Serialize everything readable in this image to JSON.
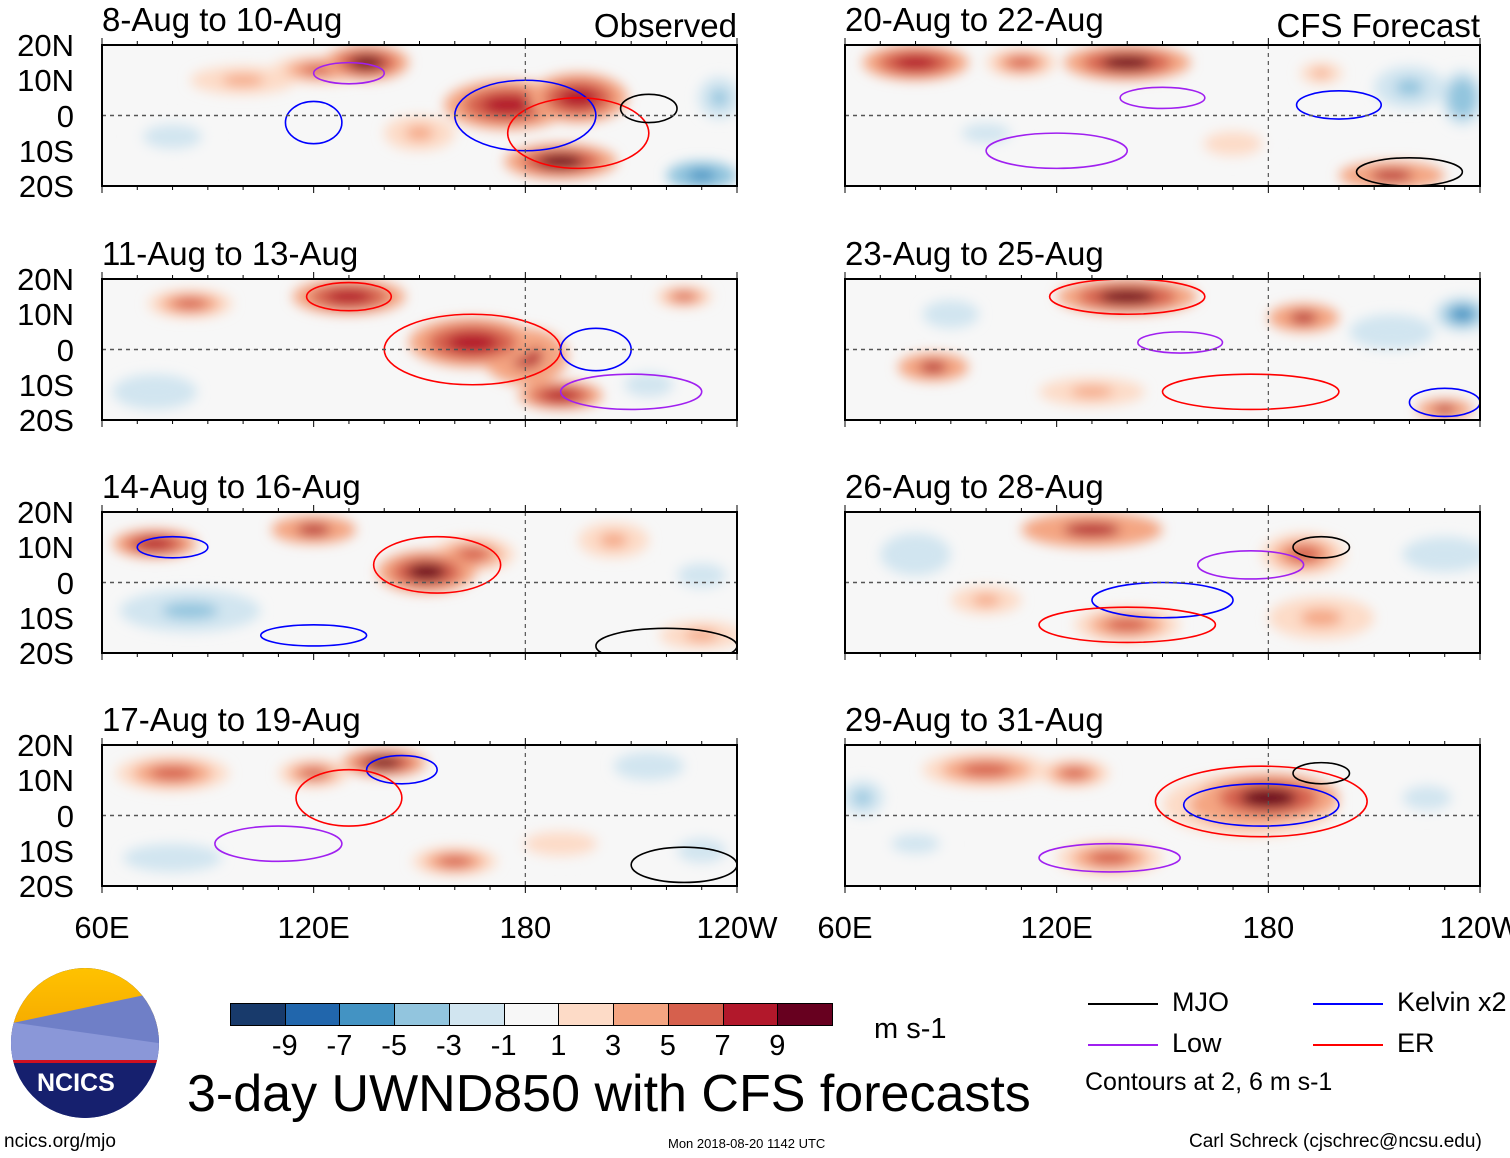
{
  "chart_data": {
    "type": "heatmap",
    "title": "3-day UWND850 with CFS forecasts",
    "variable": "UWND850",
    "units": "m s-1",
    "lon_range": [
      60,
      240
    ],
    "lat_range": [
      -20,
      20
    ],
    "lat_ticks": [
      "20N",
      "10N",
      "0",
      "10S",
      "20S"
    ],
    "lon_ticks": [
      "60E",
      "120E",
      "180",
      "120W"
    ],
    "column_labels": [
      "Observed",
      "CFS Forecast"
    ],
    "colorbar": {
      "levels": [
        -9,
        -7,
        -5,
        -3,
        -1,
        1,
        3,
        5,
        7,
        9
      ],
      "labels": [
        "-9",
        "-7",
        "-5",
        "-3",
        "-1",
        "1",
        "3",
        "5",
        "7",
        "9"
      ],
      "colors": [
        "#183a6b",
        "#2166ac",
        "#4393c3",
        "#92c5de",
        "#d1e5f0",
        "#f7f7f7",
        "#fddbc7",
        "#f4a582",
        "#d6604d",
        "#b2182b",
        "#67001f"
      ]
    },
    "legend": [
      {
        "name": "MJO",
        "color": "#000000"
      },
      {
        "name": "Kelvin x2",
        "color": "#0000ff"
      },
      {
        "name": "Low",
        "color": "#a020f0"
      },
      {
        "name": "ER",
        "color": "#ff0000"
      }
    ],
    "contour_note": "Contours at 2, 6 m s-1",
    "panels": [
      {
        "title": "8-Aug to 10-Aug",
        "col": 0,
        "row": 0,
        "anomalies": [
          [
            135,
            15,
            12,
            5,
            9
          ],
          [
            122,
            13,
            14,
            4,
            5
          ],
          [
            175,
            3,
            18,
            7,
            8
          ],
          [
            195,
            5,
            14,
            7,
            8
          ],
          [
            190,
            -13,
            16,
            5,
            9
          ],
          [
            100,
            10,
            15,
            4,
            3
          ],
          [
            230,
            -17,
            10,
            4,
            -7
          ],
          [
            235,
            5,
            6,
            6,
            -4
          ],
          [
            80,
            -6,
            12,
            5,
            -2
          ],
          [
            150,
            -5,
            10,
            5,
            3
          ]
        ],
        "contours": [
          [
            180,
            0,
            20,
            10,
            "#0000ff"
          ],
          [
            195,
            -5,
            20,
            10,
            "#ff0000"
          ],
          [
            215,
            2,
            8,
            4,
            "#000000"
          ],
          [
            120,
            -2,
            8,
            6,
            "#0000ff"
          ],
          [
            130,
            12,
            10,
            3,
            "#a020f0"
          ]
        ]
      },
      {
        "title": "11-Aug to 13-Aug",
        "col": 0,
        "row": 1,
        "anomalies": [
          [
            130,
            15,
            16,
            5,
            8
          ],
          [
            85,
            13,
            12,
            4,
            6
          ],
          [
            165,
            2,
            18,
            7,
            8
          ],
          [
            180,
            -2,
            12,
            8,
            7
          ],
          [
            190,
            -13,
            12,
            4,
            8
          ],
          [
            225,
            15,
            8,
            3,
            5
          ],
          [
            75,
            -12,
            12,
            5,
            -3
          ],
          [
            215,
            -10,
            10,
            5,
            -2
          ]
        ],
        "contours": [
          [
            165,
            0,
            25,
            10,
            "#ff0000"
          ],
          [
            130,
            15,
            12,
            4,
            "#ff0000"
          ],
          [
            200,
            0,
            10,
            6,
            "#0000ff"
          ],
          [
            210,
            -12,
            20,
            5,
            "#a020f0"
          ]
        ]
      },
      {
        "title": "14-Aug to 16-Aug",
        "col": 0,
        "row": 2,
        "anomalies": [
          [
            75,
            11,
            12,
            4,
            8
          ],
          [
            120,
            15,
            12,
            4,
            7
          ],
          [
            152,
            3,
            14,
            6,
            9
          ],
          [
            165,
            8,
            12,
            5,
            6
          ],
          [
            205,
            12,
            10,
            5,
            3
          ],
          [
            85,
            -8,
            20,
            6,
            -4
          ],
          [
            230,
            2,
            10,
            5,
            -2
          ],
          [
            230,
            -15,
            12,
            4,
            3
          ]
        ],
        "contours": [
          [
            155,
            5,
            18,
            8,
            "#ff0000"
          ],
          [
            80,
            10,
            10,
            3,
            "#0000ff"
          ],
          [
            220,
            -18,
            20,
            5,
            "#000000"
          ],
          [
            120,
            -15,
            15,
            3,
            "#0000ff"
          ]
        ]
      },
      {
        "title": "17-Aug to 19-Aug",
        "col": 0,
        "row": 3,
        "anomalies": [
          [
            80,
            12,
            16,
            5,
            5
          ],
          [
            140,
            15,
            12,
            4,
            9
          ],
          [
            120,
            12,
            10,
            4,
            6
          ],
          [
            160,
            -13,
            12,
            4,
            6
          ],
          [
            215,
            14,
            10,
            4,
            -3
          ],
          [
            80,
            -12,
            14,
            4,
            -3
          ],
          [
            190,
            -8,
            15,
            5,
            2
          ],
          [
            230,
            -10,
            10,
            5,
            -2
          ]
        ],
        "contours": [
          [
            145,
            13,
            10,
            4,
            "#0000ff"
          ],
          [
            130,
            5,
            15,
            8,
            "#ff0000"
          ],
          [
            225,
            -14,
            15,
            5,
            "#000000"
          ],
          [
            110,
            -8,
            18,
            5,
            "#a020f0"
          ]
        ]
      },
      {
        "title": "20-Aug to 22-Aug",
        "col": 1,
        "row": 0,
        "anomalies": [
          [
            80,
            15,
            15,
            5,
            8
          ],
          [
            140,
            15,
            18,
            5,
            9
          ],
          [
            110,
            15,
            10,
            4,
            5
          ],
          [
            195,
            12,
            6,
            3,
            4
          ],
          [
            220,
            8,
            10,
            6,
            -4
          ],
          [
            235,
            5,
            6,
            8,
            -5
          ],
          [
            215,
            -17,
            15,
            4,
            7
          ],
          [
            100,
            -5,
            10,
            4,
            -2
          ],
          [
            170,
            -8,
            12,
            5,
            2
          ]
        ],
        "contours": [
          [
            200,
            3,
            12,
            4,
            "#0000ff"
          ],
          [
            150,
            5,
            12,
            3,
            "#a020f0"
          ],
          [
            220,
            -16,
            15,
            4,
            "#000000"
          ],
          [
            120,
            -10,
            20,
            5,
            "#a020f0"
          ]
        ]
      },
      {
        "title": "23-Aug to 25-Aug",
        "col": 1,
        "row": 1,
        "anomalies": [
          [
            140,
            15,
            20,
            5,
            9
          ],
          [
            190,
            9,
            10,
            4,
            7
          ],
          [
            235,
            10,
            8,
            5,
            -6
          ],
          [
            85,
            -5,
            10,
            4,
            7
          ],
          [
            215,
            5,
            12,
            5,
            -3
          ],
          [
            230,
            -17,
            8,
            3,
            7
          ],
          [
            130,
            -12,
            15,
            4,
            3
          ],
          [
            90,
            10,
            8,
            4,
            -3
          ]
        ],
        "contours": [
          [
            140,
            15,
            22,
            5,
            "#ff0000"
          ],
          [
            175,
            -12,
            25,
            5,
            "#ff0000"
          ],
          [
            155,
            2,
            12,
            3,
            "#a020f0"
          ],
          [
            230,
            -15,
            10,
            4,
            "#0000ff"
          ]
        ]
      },
      {
        "title": "26-Aug to 28-Aug",
        "col": 1,
        "row": 2,
        "anomalies": [
          [
            130,
            15,
            20,
            5,
            7
          ],
          [
            190,
            8,
            12,
            6,
            6
          ],
          [
            80,
            8,
            10,
            6,
            -3
          ],
          [
            230,
            8,
            12,
            5,
            -3
          ],
          [
            140,
            -12,
            15,
            5,
            5
          ],
          [
            195,
            -10,
            15,
            6,
            3
          ],
          [
            100,
            -5,
            10,
            4,
            3
          ]
        ],
        "contours": [
          [
            150,
            -5,
            20,
            5,
            "#0000ff"
          ],
          [
            140,
            -12,
            25,
            5,
            "#ff0000"
          ],
          [
            175,
            5,
            15,
            4,
            "#a020f0"
          ],
          [
            195,
            10,
            8,
            3,
            "#000000"
          ]
        ]
      },
      {
        "title": "29-Aug to 31-Aug",
        "col": 1,
        "row": 3,
        "anomalies": [
          [
            180,
            5,
            20,
            7,
            9
          ],
          [
            175,
            3,
            25,
            9,
            6
          ],
          [
            100,
            13,
            18,
            5,
            5
          ],
          [
            65,
            5,
            6,
            5,
            -4
          ],
          [
            135,
            -12,
            15,
            5,
            5
          ],
          [
            225,
            5,
            10,
            5,
            -2
          ],
          [
            80,
            -8,
            10,
            4,
            -2
          ],
          [
            125,
            12,
            10,
            4,
            6
          ]
        ],
        "contours": [
          [
            178,
            3,
            22,
            6,
            "#0000ff"
          ],
          [
            178,
            4,
            30,
            10,
            "#ff0000"
          ],
          [
            135,
            -12,
            20,
            4,
            "#a020f0"
          ],
          [
            195,
            12,
            8,
            3,
            "#000000"
          ]
        ]
      }
    ]
  },
  "footer": {
    "logo_text": "NCICS",
    "url": "ncics.org/mjo",
    "timestamp": "Mon 2018-08-20 1142 UTC",
    "author": "Carl Schreck (cjschrec@ncsu.edu)"
  }
}
